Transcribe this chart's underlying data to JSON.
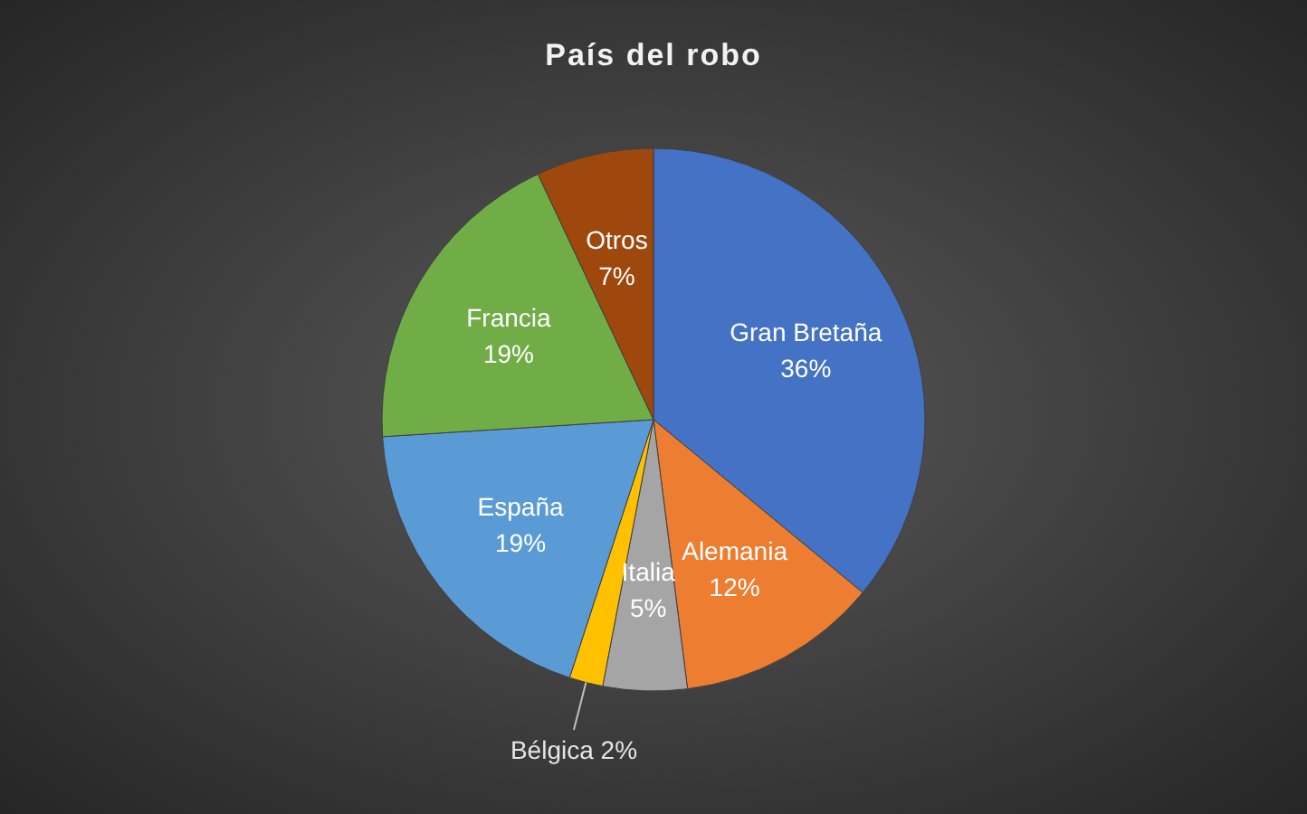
{
  "chart_data": {
    "type": "pie",
    "title": "País del robo",
    "categories": [
      "Gran Bretaña",
      "Alemania",
      "Italia",
      "Bélgica",
      "España",
      "Francia",
      "Otros"
    ],
    "values": [
      36,
      12,
      5,
      2,
      19,
      19,
      7
    ],
    "colors": [
      "#4472c4",
      "#ed7d31",
      "#a5a5a5",
      "#ffc000",
      "#5b9bd5",
      "#70ad47",
      "#9e480e"
    ],
    "value_labels": [
      "36%",
      "12%",
      "5%",
      "2%",
      "19%",
      "19%",
      "7%"
    ]
  }
}
